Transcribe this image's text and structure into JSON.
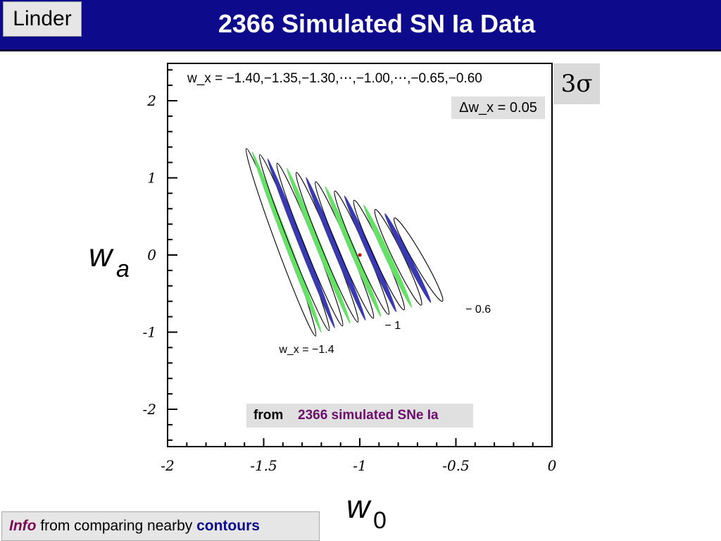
{
  "header": {
    "author": "Linder",
    "title": "2366 Simulated SN Ia Data"
  },
  "badges": {
    "sigma": "3σ"
  },
  "axis_symbols": {
    "wa_main": "w",
    "wa_sub": "a",
    "w0_main": "w",
    "w0_sub": "0"
  },
  "from_note": {
    "prefix": "from",
    "highlight": "2366 simulated SNe Ia"
  },
  "footer": {
    "info": "Info",
    "middle": " from comparing nearby ",
    "contours": "contours"
  },
  "colors": {
    "header_bg": "#0d0a8c",
    "green": "#66e066",
    "blue": "#3a3ab0",
    "outline": "#000000",
    "fiducial": "#cc0000"
  },
  "chart_data": {
    "type": "scatter",
    "title": "",
    "xlabel": "w0",
    "ylabel": "wa",
    "xlim": [
      -2,
      0
    ],
    "ylim": [
      -2.5,
      2.5
    ],
    "x_ticks": [
      "-2",
      "-1.5",
      "-1",
      "-0.5",
      "0"
    ],
    "x_tick_values": [
      -2,
      -1.5,
      -1,
      -0.5,
      0
    ],
    "y_ticks": [
      "2",
      "1",
      "0",
      "-1",
      "-2"
    ],
    "y_tick_values": [
      2,
      1,
      0,
      -1,
      -2
    ],
    "legend_top": "w_x = −1.40,−1.35,−1.30,⋯,−1.00,⋯,−0.65,−0.60",
    "delta_label": "Δw_x = 0.05",
    "fiducial": {
      "w0": -1.0,
      "wa": 0.0
    },
    "contour_annotations": [
      {
        "text": "w_x = −1.4",
        "w0": -1.42,
        "wa": -1.27
      },
      {
        "text": "− 1",
        "w0": -0.87,
        "wa": -0.96
      },
      {
        "text": "− 0.6",
        "w0": -0.45,
        "wa": -0.75
      }
    ],
    "series": [
      {
        "name": "w_x = -1.40",
        "style": "outline",
        "w0_top": -1.59,
        "w0_bottom": -1.23,
        "wa_top": 1.38,
        "wa_bottom": -1.05
      },
      {
        "name": "w_x = -1.35",
        "style": "green",
        "w0_top": -1.56,
        "w0_bottom": -1.2,
        "wa_top": 1.34,
        "wa_bottom": -1.01
      },
      {
        "name": "w_x = -1.30",
        "style": "outline",
        "w0_top": -1.52,
        "w0_bottom": -1.16,
        "wa_top": 1.3,
        "wa_bottom": -0.98
      },
      {
        "name": "w_x = -1.25",
        "style": "blue",
        "w0_top": -1.48,
        "w0_bottom": -1.13,
        "wa_top": 1.25,
        "wa_bottom": -0.95
      },
      {
        "name": "w_x = -1.20",
        "style": "outline",
        "w0_top": -1.43,
        "w0_bottom": -1.09,
        "wa_top": 1.19,
        "wa_bottom": -0.92
      },
      {
        "name": "w_x = -1.15",
        "style": "green",
        "w0_top": -1.38,
        "w0_bottom": -1.05,
        "wa_top": 1.13,
        "wa_bottom": -0.89
      },
      {
        "name": "w_x = -1.10",
        "style": "outline",
        "w0_top": -1.33,
        "w0_bottom": -1.01,
        "wa_top": 1.07,
        "wa_bottom": -0.87
      },
      {
        "name": "w_x = -1.05",
        "style": "blue",
        "w0_top": -1.28,
        "w0_bottom": -0.97,
        "wa_top": 1.01,
        "wa_bottom": -0.85
      },
      {
        "name": "w_x = -1.00",
        "style": "outline",
        "w0_top": -1.23,
        "w0_bottom": -0.93,
        "wa_top": 0.95,
        "wa_bottom": -0.82
      },
      {
        "name": "w_x = -0.95",
        "style": "green",
        "w0_top": -1.18,
        "w0_bottom": -0.89,
        "wa_top": 0.89,
        "wa_bottom": -0.8
      },
      {
        "name": "w_x = -0.90",
        "style": "outline",
        "w0_top": -1.13,
        "w0_bottom": -0.85,
        "wa_top": 0.83,
        "wa_bottom": -0.77
      },
      {
        "name": "w_x = -0.85",
        "style": "blue",
        "w0_top": -1.08,
        "w0_bottom": -0.81,
        "wa_top": 0.77,
        "wa_bottom": -0.74
      },
      {
        "name": "w_x = -0.80",
        "style": "outline",
        "w0_top": -1.03,
        "w0_bottom": -0.77,
        "wa_top": 0.71,
        "wa_bottom": -0.71
      },
      {
        "name": "w_x = -0.75",
        "style": "green",
        "w0_top": -0.98,
        "w0_bottom": -0.73,
        "wa_top": 0.65,
        "wa_bottom": -0.68
      },
      {
        "name": "w_x = -0.70",
        "style": "outline",
        "w0_top": -0.92,
        "w0_bottom": -0.68,
        "wa_top": 0.59,
        "wa_bottom": -0.65
      },
      {
        "name": "w_x = -0.65",
        "style": "blue",
        "w0_top": -0.87,
        "w0_bottom": -0.63,
        "wa_top": 0.54,
        "wa_bottom": -0.62
      },
      {
        "name": "w_x = -0.60",
        "style": "outline",
        "w0_top": -0.82,
        "w0_bottom": -0.57,
        "wa_top": 0.48,
        "wa_bottom": -0.6
      }
    ]
  }
}
